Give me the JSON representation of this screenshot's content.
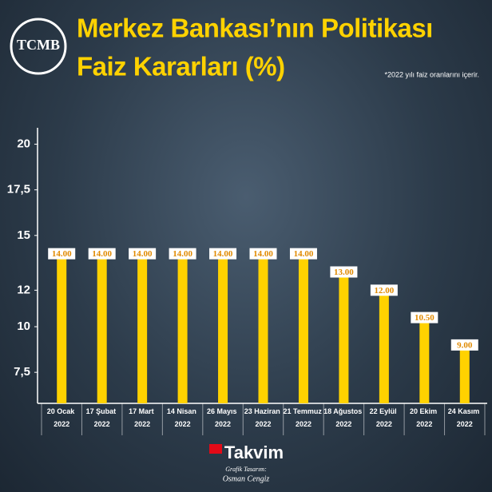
{
  "chart_data": {
    "type": "bar",
    "title": [
      "Merkez Bankası’nın Politikası",
      "Faiz Kararları (%)"
    ],
    "note": "*2022 yılı faiz oranlarını içerir.",
    "logo": "TCMB",
    "categories": [
      "20 Ocak 2022",
      "17 Şubat 2022",
      "17 Mart 2022",
      "14 Nisan 2022",
      "26 Mayıs 2022",
      "23 Haziran 2022",
      "21 Temmuz 2022",
      "18 Ağustos 2022",
      "22 Eylül 2022",
      "20 Ekim 2022",
      "24 Kasım 2022"
    ],
    "values": [
      14,
      14,
      14,
      14,
      14,
      14,
      14,
      13,
      12,
      10.5,
      9
    ],
    "value_labels": [
      "14.00",
      "14.00",
      "14.00",
      "14.00",
      "14.00",
      "14.00",
      "14.00",
      "13.00",
      "12.00",
      "10.50",
      "9.00"
    ],
    "color": "#ffd200",
    "ylim": [
      5.8,
      20.9
    ],
    "yticks": [
      {
        "value": 7.5,
        "label": "7,5"
      },
      10,
      12,
      15,
      {
        "value": 17.5,
        "label": "17,5"
      },
      20
    ],
    "grid": false
  },
  "footer": {
    "brand": "Takvim",
    "credit_label": "Grafik Tasarım:",
    "credit_name": "Osman Cengiz"
  }
}
